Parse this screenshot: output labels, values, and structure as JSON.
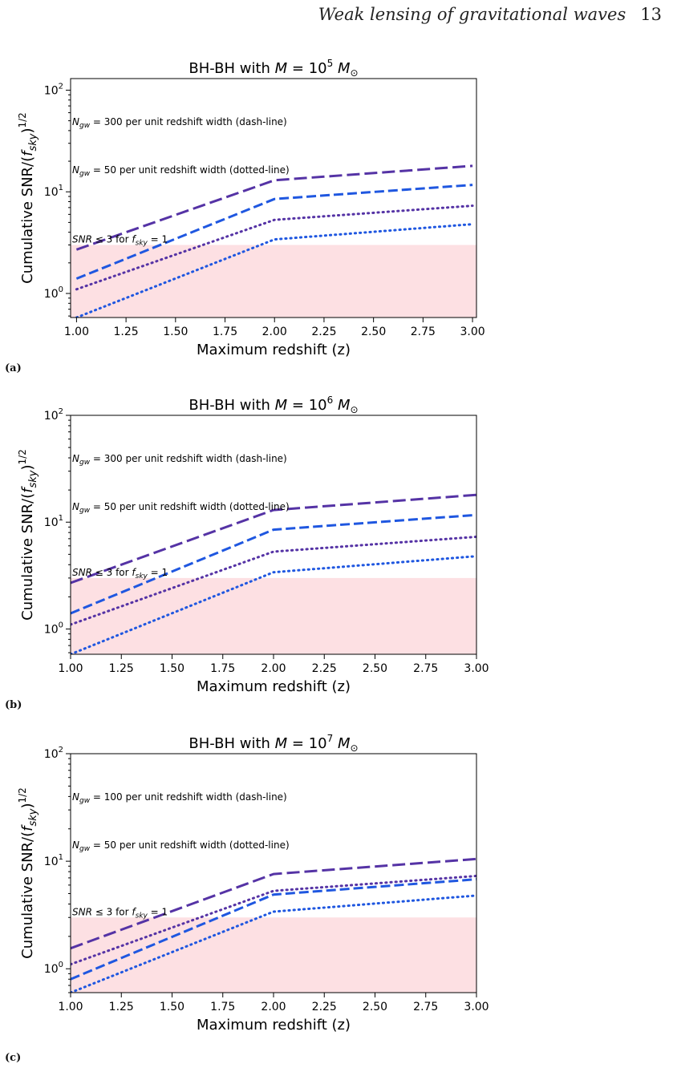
{
  "header": {
    "title": "Weak lensing of gravitational waves",
    "page": "13"
  },
  "chart_data": [
    {
      "type": "line",
      "label": "(a)",
      "title": {
        "prefix": "BH-BH with ",
        "exp": "5"
      },
      "xlabel": "Maximum redshift (z)",
      "ylabel": "Cumulative SNR/(f_sky)^1/2",
      "xlim": [
        0.97,
        3.02
      ],
      "ylim": [
        0.58,
        130
      ],
      "yscale": "log",
      "xticks": [
        "1.00",
        "1.25",
        "1.50",
        "1.75",
        "2.00",
        "2.25",
        "2.50",
        "2.75",
        "3.00"
      ],
      "annotations": {
        "dash": "300",
        "dot": "50"
      },
      "shade_below": 3.0,
      "series": [
        {
          "style": "dashed-long",
          "color": "#5533a5",
          "x": [
            1.0,
            2.0,
            3.0
          ],
          "y": [
            2.7,
            13.0,
            18.0
          ]
        },
        {
          "style": "dashed",
          "color": "#1f57e0",
          "x": [
            1.0,
            2.0,
            3.0
          ],
          "y": [
            1.4,
            8.5,
            11.7
          ]
        },
        {
          "style": "dotted",
          "color": "#5533a5",
          "x": [
            1.0,
            2.0,
            3.0
          ],
          "y": [
            1.1,
            5.3,
            7.3
          ]
        },
        {
          "style": "dotted",
          "color": "#1f57e0",
          "x": [
            1.0,
            2.0,
            3.0
          ],
          "y": [
            0.58,
            3.4,
            4.8
          ]
        }
      ]
    },
    {
      "type": "line",
      "label": "(b)",
      "title": {
        "prefix": "BH-BH with ",
        "exp": "6"
      },
      "xlabel": "Maximum redshift (z)",
      "ylabel": "Cumulative SNR/(f_sky)^1/2",
      "xlim": [
        1.0,
        3.0
      ],
      "ylim": [
        0.58,
        100
      ],
      "yscale": "log",
      "xticks": [
        "1.00",
        "1.25",
        "1.50",
        "1.75",
        "2.00",
        "2.25",
        "2.50",
        "2.75",
        "3.00"
      ],
      "annotations": {
        "dash": "300",
        "dot": "50"
      },
      "shade_below": 3.0,
      "series": [
        {
          "style": "dashed-long",
          "color": "#5533a5",
          "x": [
            1.0,
            2.0,
            3.0
          ],
          "y": [
            2.7,
            13.0,
            18.0
          ]
        },
        {
          "style": "dashed",
          "color": "#1f57e0",
          "x": [
            1.0,
            2.0,
            3.0
          ],
          "y": [
            1.4,
            8.5,
            11.7
          ]
        },
        {
          "style": "dotted",
          "color": "#5533a5",
          "x": [
            1.0,
            2.0,
            3.0
          ],
          "y": [
            1.1,
            5.3,
            7.3
          ]
        },
        {
          "style": "dotted",
          "color": "#1f57e0",
          "x": [
            1.0,
            2.0,
            3.0
          ],
          "y": [
            0.58,
            3.4,
            4.8
          ]
        }
      ]
    },
    {
      "type": "line",
      "label": "(c)",
      "title": {
        "prefix": "BH-BH with ",
        "exp": "7"
      },
      "xlabel": "Maximum redshift (z)",
      "ylabel": "Cumulative SNR/(f_sky)^1/2",
      "xlim": [
        1.0,
        3.0
      ],
      "ylim": [
        0.6,
        100
      ],
      "yscale": "log",
      "xticks": [
        "1.00",
        "1.25",
        "1.50",
        "1.75",
        "2.00",
        "2.25",
        "2.50",
        "2.75",
        "3.00"
      ],
      "annotations": {
        "dash": "100",
        "dot": "50"
      },
      "shade_below": 3.0,
      "series": [
        {
          "style": "dashed-long",
          "color": "#5533a5",
          "x": [
            1.0,
            2.0,
            3.0
          ],
          "y": [
            1.55,
            7.6,
            10.5
          ]
        },
        {
          "style": "dashed",
          "color": "#1f57e0",
          "x": [
            1.0,
            2.0,
            3.0
          ],
          "y": [
            0.8,
            4.9,
            6.8
          ]
        },
        {
          "style": "dotted",
          "color": "#5533a5",
          "x": [
            1.0,
            2.0,
            3.0
          ],
          "y": [
            1.1,
            5.3,
            7.3
          ]
        },
        {
          "style": "dotted",
          "color": "#1f57e0",
          "x": [
            1.0,
            2.0,
            3.0
          ],
          "y": [
            0.6,
            3.4,
            4.8
          ]
        }
      ]
    }
  ],
  "colors": {
    "shade": "#fde0e3",
    "frame": "#000000"
  }
}
